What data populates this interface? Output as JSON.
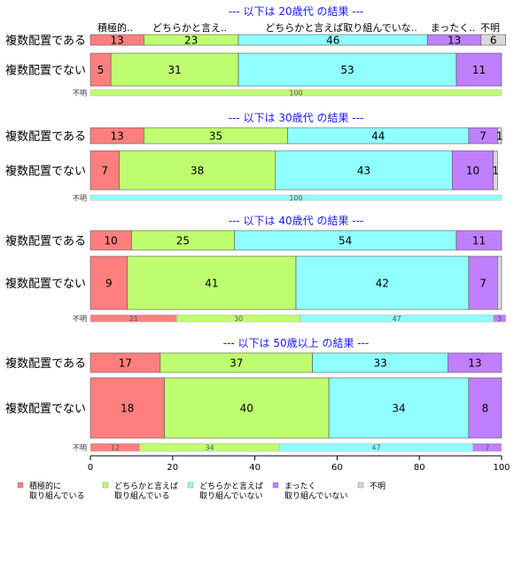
{
  "chart_data": {
    "type": "bar",
    "orientation": "horizontal-stacked-100",
    "xlim": [
      0,
      100
    ],
    "xticks": [
      "0",
      "20",
      "40",
      "60",
      "80",
      "100"
    ],
    "column_headers": [
      "積極的..",
      "どちらかと言え..",
      "どちらかと言えば取り組んでいな..",
      "まったく..",
      "不明"
    ],
    "legend": [
      {
        "lines": [
          "積極的に",
          "取り組んでいる"
        ],
        "color": "#ff7f7f"
      },
      {
        "lines": [
          "どちらかと言えば",
          "取り組んでいる"
        ],
        "color": "#bfff6f"
      },
      {
        "lines": [
          "どちらかと言えば",
          "取り組んでいない"
        ],
        "color": "#8fffff"
      },
      {
        "lines": [
          "まったく",
          "取り組んでいない"
        ],
        "color": "#bf7fff"
      },
      {
        "lines": [
          "不明"
        ],
        "color": "#d9d9d9"
      }
    ],
    "groups": [
      {
        "title": "--- 以下は 20歳代 の結果 ---",
        "rows": [
          {
            "label": "複数配置である",
            "size": "normal",
            "values": [
              13,
              23,
              46,
              13,
              6
            ],
            "labels": [
              "13",
              "23",
              "46",
              "13",
              "6"
            ]
          },
          {
            "label": "複数配置でない",
            "size": "normal",
            "values": [
              5,
              31,
              53,
              11,
              0
            ],
            "labels": [
              "5",
              "31",
              "53",
              "11",
              ""
            ]
          },
          {
            "label": "不明",
            "size": "small",
            "values": [
              0,
              100,
              0,
              0,
              0
            ],
            "labels": [
              "",
              "100",
              "",
              "",
              ""
            ]
          }
        ]
      },
      {
        "title": "--- 以下は 30歳代 の結果 ---",
        "rows": [
          {
            "label": "複数配置である",
            "size": "normal",
            "values": [
              13,
              35,
              44,
              7,
              1
            ],
            "labels": [
              "13",
              "35",
              "44",
              "7",
              "1"
            ]
          },
          {
            "label": "複数配置でない",
            "size": "normal",
            "values": [
              7,
              38,
              43,
              10,
              1
            ],
            "labels": [
              "7",
              "38",
              "43",
              "10",
              "1"
            ]
          },
          {
            "label": "不明",
            "size": "small",
            "values": [
              0,
              0,
              100,
              0,
              0
            ],
            "labels": [
              "",
              "",
              "100",
              "",
              ""
            ]
          }
        ]
      },
      {
        "title": "--- 以下は 40歳代 の結果 ---",
        "rows": [
          {
            "label": "複数配置である",
            "size": "normal",
            "values": [
              10,
              25,
              54,
              11,
              0
            ],
            "labels": [
              "10",
              "25",
              "54",
              "11",
              ""
            ]
          },
          {
            "label": "複数配置でない",
            "size": "large",
            "values": [
              9,
              41,
              42,
              7,
              1
            ],
            "labels": [
              "9",
              "41",
              "42",
              "7",
              ""
            ]
          },
          {
            "label": "不明",
            "size": "small",
            "values": [
              21,
              30,
              47,
              3,
              0
            ],
            "labels": [
              "21",
              "30",
              "47",
              "3",
              ""
            ]
          }
        ]
      },
      {
        "title": "--- 以下は 50歳以上 の結果 ---",
        "rows": [
          {
            "label": "複数配置である",
            "size": "normal",
            "values": [
              17,
              37,
              33,
              13,
              0
            ],
            "labels": [
              "17",
              "37",
              "33",
              "13",
              ""
            ]
          },
          {
            "label": "複数配置でない",
            "size": "large",
            "values": [
              18,
              40,
              34,
              8,
              0
            ],
            "labels": [
              "18",
              "40",
              "34",
              "8",
              ""
            ]
          },
          {
            "label": "不明",
            "size": "small",
            "values": [
              12,
              34,
              47,
              7,
              0
            ],
            "labels": [
              "12",
              "34",
              "47",
              "7",
              ""
            ]
          }
        ]
      }
    ]
  }
}
